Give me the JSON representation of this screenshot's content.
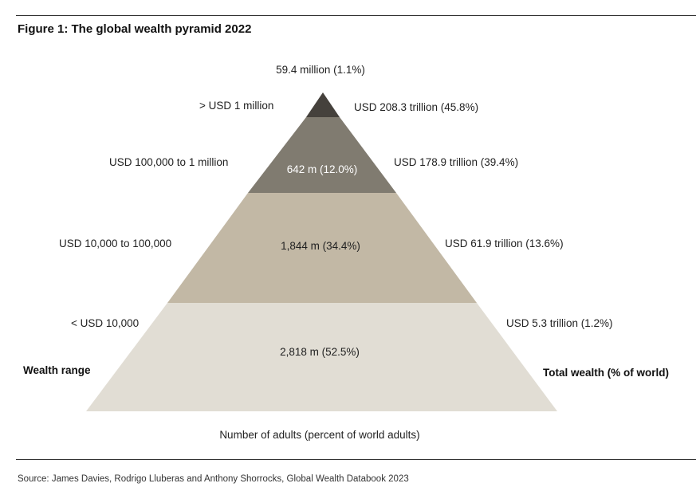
{
  "title": "Figure 1: The global wealth pyramid 2022",
  "colors": {
    "tier1": "#45413c",
    "tier2": "#807b70",
    "tier3": "#c2b8a5",
    "tier4": "#e1ddd4"
  },
  "tiers": [
    {
      "wealth_range": "> USD 1 million",
      "adults": "59.4 million (1.1%)",
      "total_wealth": "USD 208.3 trillion (45.8%)"
    },
    {
      "wealth_range": "USD 100,000  to 1 million",
      "adults": "642 m (12.0%)",
      "total_wealth": "USD 178.9 trillion (39.4%)"
    },
    {
      "wealth_range": "USD 10,000  to 100,000",
      "adults": "1,844 m (34.4%)",
      "total_wealth": "USD 61.9 trillion (13.6%)"
    },
    {
      "wealth_range": "< USD 10,000",
      "adults": "2,818 m (52.5%)",
      "total_wealth": "USD 5.3 trillion (1.2%)"
    }
  ],
  "axis_labels": {
    "left": "Wealth range",
    "right": "Total wealth (% of world)",
    "bottom": "Number of adults (percent of world adults)"
  },
  "source": "Source: James Davies, Rodrigo Lluberas and Anthony Shorrocks, Global Wealth Databook 2023"
}
